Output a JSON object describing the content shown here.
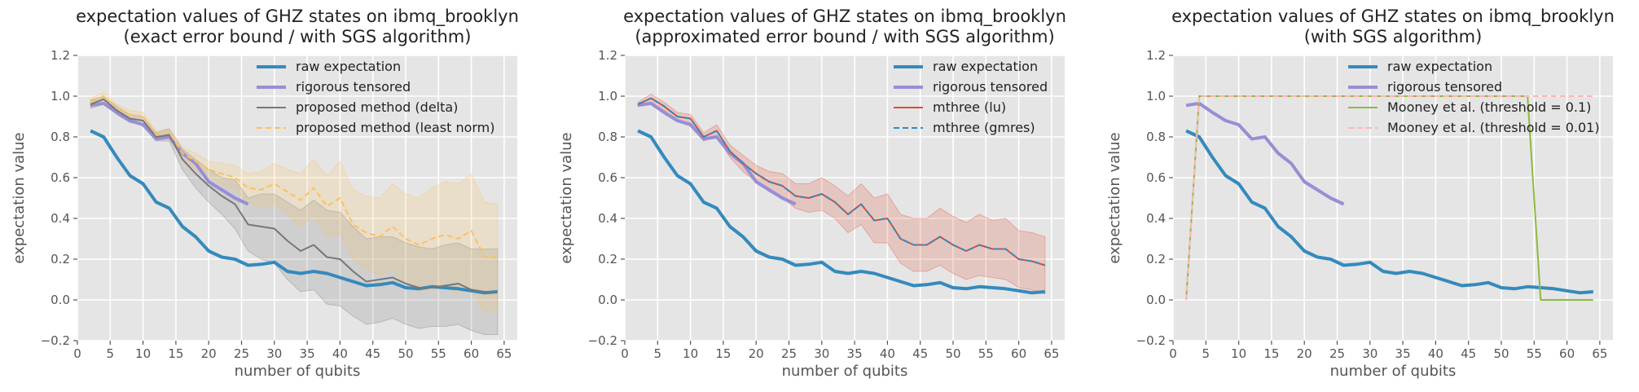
{
  "chart_data": [
    {
      "type": "line",
      "title": "expectation values of GHZ states on ibmq_brooklyn\n(exact error bound / with SGS algorithm)",
      "xlabel": "number of qubits",
      "ylabel": "expectation value",
      "xlim": [
        0,
        67
      ],
      "ylim": [
        -0.2,
        1.2
      ],
      "xticks": [
        0,
        5,
        10,
        15,
        20,
        25,
        30,
        35,
        40,
        45,
        50,
        55,
        60,
        65
      ],
      "yticks": [
        -0.2,
        0.0,
        0.2,
        0.4,
        0.6,
        0.8,
        1.0,
        1.2
      ],
      "ytick_labels": [
        "−0.2",
        "0.0",
        "0.2",
        "0.4",
        "0.6",
        "0.8",
        "1.0",
        "1.2"
      ],
      "legend_position": "top-right",
      "series": [
        {
          "name": "raw expectation",
          "color": "#348ABD",
          "style": "solid-thick",
          "x": [
            2,
            4,
            6,
            8,
            10,
            12,
            14,
            16,
            18,
            20,
            22,
            24,
            26,
            28,
            30,
            32,
            34,
            36,
            38,
            40,
            42,
            44,
            46,
            48,
            50,
            52,
            54,
            56,
            58,
            60,
            62,
            64
          ],
          "y": [
            0.83,
            0.8,
            0.7,
            0.61,
            0.57,
            0.48,
            0.45,
            0.36,
            0.31,
            0.24,
            0.21,
            0.2,
            0.17,
            0.175,
            0.185,
            0.14,
            0.13,
            0.14,
            0.13,
            0.11,
            0.09,
            0.07,
            0.075,
            0.085,
            0.06,
            0.055,
            0.065,
            0.06,
            0.055,
            0.045,
            0.035,
            0.04
          ]
        },
        {
          "name": "rigorous tensored",
          "color": "#988ED5",
          "style": "solid-thick",
          "x": [
            2,
            4,
            6,
            8,
            10,
            12,
            14,
            16,
            18,
            20,
            22,
            24,
            26
          ],
          "y": [
            0.955,
            0.965,
            0.92,
            0.88,
            0.86,
            0.79,
            0.8,
            0.72,
            0.67,
            0.58,
            0.54,
            0.5,
            0.47
          ]
        },
        {
          "name": "proposed method (delta)",
          "color": "#777777",
          "style": "solid",
          "x": [
            2,
            4,
            6,
            8,
            10,
            12,
            14,
            16,
            18,
            20,
            22,
            24,
            26,
            28,
            30,
            32,
            34,
            36,
            38,
            40,
            42,
            44,
            46,
            48,
            50,
            52,
            54,
            56,
            58,
            60,
            62,
            64
          ],
          "y": [
            0.96,
            0.985,
            0.93,
            0.89,
            0.88,
            0.8,
            0.81,
            0.69,
            0.62,
            0.56,
            0.51,
            0.47,
            0.37,
            0.36,
            0.35,
            0.29,
            0.24,
            0.27,
            0.21,
            0.2,
            0.14,
            0.09,
            0.1,
            0.11,
            0.08,
            0.06,
            0.06,
            0.07,
            0.08,
            0.05,
            0.04,
            0.04
          ],
          "band_lower": [
            0.94,
            0.96,
            0.91,
            0.87,
            0.86,
            0.78,
            0.78,
            0.64,
            0.55,
            0.48,
            0.42,
            0.35,
            0.24,
            0.2,
            0.18,
            0.1,
            0.04,
            0.05,
            -0.02,
            -0.03,
            -0.08,
            -0.12,
            -0.11,
            -0.09,
            -0.12,
            -0.14,
            -0.13,
            -0.13,
            -0.12,
            -0.15,
            -0.17,
            -0.17
          ],
          "band_upper": [
            0.98,
            1.0,
            0.95,
            0.91,
            0.9,
            0.82,
            0.84,
            0.74,
            0.69,
            0.64,
            0.6,
            0.59,
            0.5,
            0.52,
            0.52,
            0.48,
            0.44,
            0.49,
            0.44,
            0.43,
            0.36,
            0.3,
            0.31,
            0.31,
            0.28,
            0.26,
            0.25,
            0.27,
            0.28,
            0.25,
            0.25,
            0.25
          ]
        },
        {
          "name": "proposed method (least norm)",
          "color": "#FBC15E",
          "style": "dashed",
          "x": [
            2,
            4,
            6,
            8,
            10,
            12,
            14,
            16,
            18,
            20,
            22,
            24,
            26,
            28,
            30,
            32,
            34,
            36,
            38,
            40,
            42,
            44,
            46,
            48,
            50,
            52,
            54,
            56,
            58,
            60,
            62,
            64
          ],
          "y": [
            0.97,
            1.0,
            0.94,
            0.91,
            0.9,
            0.81,
            0.82,
            0.72,
            0.68,
            0.64,
            0.62,
            0.6,
            0.55,
            0.54,
            0.57,
            0.53,
            0.49,
            0.55,
            0.46,
            0.5,
            0.37,
            0.33,
            0.31,
            0.36,
            0.3,
            0.27,
            0.3,
            0.32,
            0.3,
            0.34,
            0.21,
            0.21
          ],
          "band_lower": [
            0.95,
            0.97,
            0.92,
            0.89,
            0.88,
            0.79,
            0.8,
            0.69,
            0.64,
            0.6,
            0.57,
            0.54,
            0.48,
            0.45,
            0.47,
            0.42,
            0.36,
            0.41,
            0.31,
            0.32,
            0.2,
            0.15,
            0.12,
            0.15,
            0.08,
            0.04,
            0.05,
            0.06,
            0.03,
            0.05,
            -0.06,
            -0.05
          ],
          "band_upper": [
            0.99,
            1.02,
            0.96,
            0.93,
            0.92,
            0.83,
            0.84,
            0.75,
            0.72,
            0.68,
            0.67,
            0.66,
            0.62,
            0.63,
            0.67,
            0.64,
            0.62,
            0.69,
            0.61,
            0.68,
            0.54,
            0.51,
            0.5,
            0.57,
            0.52,
            0.5,
            0.55,
            0.58,
            0.57,
            0.62,
            0.48,
            0.47
          ]
        }
      ]
    },
    {
      "type": "line",
      "title": "expectation values of GHZ states on ibmq_brooklyn\n(approximated error bound / with SGS algorithm)",
      "xlabel": "number of qubits",
      "ylabel": "expectation value",
      "xlim": [
        0,
        67
      ],
      "ylim": [
        -0.2,
        1.2
      ],
      "xticks": [
        0,
        5,
        10,
        15,
        20,
        25,
        30,
        35,
        40,
        45,
        50,
        55,
        60,
        65
      ],
      "yticks": [
        -0.2,
        0.0,
        0.2,
        0.4,
        0.6,
        0.8,
        1.0,
        1.2
      ],
      "ytick_labels": [
        "−0.2",
        "0.0",
        "0.2",
        "0.4",
        "0.6",
        "0.8",
        "1.0",
        "1.2"
      ],
      "legend_position": "top-right",
      "series": [
        {
          "name": "raw expectation",
          "color": "#348ABD",
          "style": "solid-thick",
          "x": [
            2,
            4,
            6,
            8,
            10,
            12,
            14,
            16,
            18,
            20,
            22,
            24,
            26,
            28,
            30,
            32,
            34,
            36,
            38,
            40,
            42,
            44,
            46,
            48,
            50,
            52,
            54,
            56,
            58,
            60,
            62,
            64
          ],
          "y": [
            0.83,
            0.8,
            0.7,
            0.61,
            0.57,
            0.48,
            0.45,
            0.36,
            0.31,
            0.24,
            0.21,
            0.2,
            0.17,
            0.175,
            0.185,
            0.14,
            0.13,
            0.14,
            0.13,
            0.11,
            0.09,
            0.07,
            0.075,
            0.085,
            0.06,
            0.055,
            0.065,
            0.06,
            0.055,
            0.045,
            0.035,
            0.04
          ]
        },
        {
          "name": "rigorous tensored",
          "color": "#988ED5",
          "style": "solid-thick",
          "x": [
            2,
            4,
            6,
            8,
            10,
            12,
            14,
            16,
            18,
            20,
            22,
            24,
            26
          ],
          "y": [
            0.955,
            0.965,
            0.92,
            0.88,
            0.86,
            0.79,
            0.8,
            0.72,
            0.67,
            0.58,
            0.54,
            0.5,
            0.47
          ]
        },
        {
          "name": "mthree (lu)",
          "color": "#E24A33",
          "style": "solid",
          "x": [
            2,
            4,
            6,
            8,
            10,
            12,
            14,
            16,
            18,
            20,
            22,
            24,
            26,
            28,
            30,
            32,
            34,
            36,
            38,
            40,
            42,
            44,
            46,
            48,
            50,
            52,
            54,
            56,
            58,
            60,
            62,
            64
          ],
          "y": [
            0.96,
            0.99,
            0.95,
            0.9,
            0.89,
            0.8,
            0.83,
            0.73,
            0.67,
            0.62,
            0.58,
            0.56,
            0.51,
            0.5,
            0.52,
            0.48,
            0.42,
            0.47,
            0.39,
            0.4,
            0.3,
            0.27,
            0.27,
            0.31,
            0.27,
            0.24,
            0.27,
            0.25,
            0.25,
            0.2,
            0.19,
            0.17
          ],
          "band_lower": [
            0.95,
            0.97,
            0.93,
            0.88,
            0.87,
            0.78,
            0.8,
            0.7,
            0.63,
            0.58,
            0.53,
            0.5,
            0.45,
            0.43,
            0.44,
            0.4,
            0.33,
            0.37,
            0.28,
            0.28,
            0.18,
            0.14,
            0.14,
            0.17,
            0.13,
            0.1,
            0.12,
            0.11,
            0.1,
            0.06,
            0.05,
            0.03
          ],
          "band_upper": [
            0.97,
            1.01,
            0.97,
            0.92,
            0.91,
            0.82,
            0.86,
            0.76,
            0.71,
            0.66,
            0.63,
            0.62,
            0.57,
            0.57,
            0.6,
            0.56,
            0.51,
            0.57,
            0.5,
            0.52,
            0.42,
            0.4,
            0.4,
            0.45,
            0.41,
            0.38,
            0.42,
            0.39,
            0.4,
            0.34,
            0.33,
            0.31
          ]
        },
        {
          "name": "mthree (gmres)",
          "color": "#348ABD",
          "style": "dashed",
          "x": [
            2,
            4,
            6,
            8,
            10,
            12,
            14,
            16,
            18,
            20,
            22,
            24,
            26,
            28,
            30,
            32,
            34,
            36,
            38,
            40,
            42,
            44,
            46,
            48,
            50,
            52,
            54,
            56,
            58,
            60,
            62,
            64
          ],
          "y": [
            0.96,
            0.99,
            0.95,
            0.9,
            0.89,
            0.8,
            0.83,
            0.73,
            0.67,
            0.62,
            0.58,
            0.56,
            0.51,
            0.5,
            0.52,
            0.48,
            0.42,
            0.47,
            0.39,
            0.4,
            0.3,
            0.27,
            0.27,
            0.31,
            0.27,
            0.24,
            0.27,
            0.25,
            0.25,
            0.2,
            0.19,
            0.17
          ]
        }
      ]
    },
    {
      "type": "line",
      "title": "expectation values of GHZ states on ibmq_brooklyn\n(with SGS algorithm)",
      "xlabel": "number of qubits",
      "ylabel": "expectation value",
      "xlim": [
        0,
        67
      ],
      "ylim": [
        -0.2,
        1.2
      ],
      "xticks": [
        0,
        5,
        10,
        15,
        20,
        25,
        30,
        35,
        40,
        45,
        50,
        55,
        60,
        65
      ],
      "yticks": [
        -0.2,
        0.0,
        0.2,
        0.4,
        0.6,
        0.8,
        1.0,
        1.2
      ],
      "ytick_labels": [
        "−0.2",
        "0.0",
        "0.2",
        "0.4",
        "0.6",
        "0.8",
        "1.0",
        "1.2"
      ],
      "legend_position": "top-right",
      "series": [
        {
          "name": "raw expectation",
          "color": "#348ABD",
          "style": "solid-thick",
          "x": [
            2,
            4,
            6,
            8,
            10,
            12,
            14,
            16,
            18,
            20,
            22,
            24,
            26,
            28,
            30,
            32,
            34,
            36,
            38,
            40,
            42,
            44,
            46,
            48,
            50,
            52,
            54,
            56,
            58,
            60,
            62,
            64
          ],
          "y": [
            0.83,
            0.8,
            0.7,
            0.61,
            0.57,
            0.48,
            0.45,
            0.36,
            0.31,
            0.24,
            0.21,
            0.2,
            0.17,
            0.175,
            0.185,
            0.14,
            0.13,
            0.14,
            0.13,
            0.11,
            0.09,
            0.07,
            0.075,
            0.085,
            0.06,
            0.055,
            0.065,
            0.06,
            0.055,
            0.045,
            0.035,
            0.04
          ]
        },
        {
          "name": "rigorous tensored",
          "color": "#988ED5",
          "style": "solid-thick",
          "x": [
            2,
            4,
            6,
            8,
            10,
            12,
            14,
            16,
            18,
            20,
            22,
            24,
            26
          ],
          "y": [
            0.955,
            0.965,
            0.92,
            0.88,
            0.86,
            0.79,
            0.8,
            0.72,
            0.67,
            0.58,
            0.54,
            0.5,
            0.47
          ]
        },
        {
          "name": "Mooney et al. (threshold = 0.1)",
          "color": "#8EBA42",
          "style": "solid",
          "x": [
            2,
            4,
            6,
            8,
            10,
            12,
            14,
            16,
            18,
            20,
            22,
            24,
            26,
            28,
            30,
            32,
            34,
            36,
            38,
            40,
            42,
            44,
            46,
            48,
            50,
            52,
            54,
            56,
            58,
            60,
            62,
            64
          ],
          "y": [
            0,
            1,
            1,
            1,
            1,
            1,
            1,
            1,
            1,
            1,
            1,
            1,
            1,
            1,
            1,
            1,
            1,
            1,
            1,
            1,
            1,
            1,
            1,
            1,
            1,
            1,
            1,
            0,
            0,
            0,
            0,
            0
          ]
        },
        {
          "name": "Mooney et al. (threshold = 0.01)",
          "color": "#FFB5B8",
          "style": "dashed",
          "x": [
            2,
            4,
            6,
            8,
            10,
            12,
            14,
            16,
            18,
            20,
            22,
            24,
            26,
            28,
            30,
            32,
            34,
            36,
            38,
            40,
            42,
            44,
            46,
            48,
            50,
            52,
            54,
            56,
            58,
            60,
            62,
            64
          ],
          "y": [
            0,
            1,
            1,
            1,
            1,
            1,
            1,
            1,
            1,
            1,
            1,
            1,
            1,
            1,
            1,
            1,
            1,
            1,
            1,
            1,
            1,
            1,
            1,
            1,
            1,
            1,
            1,
            1,
            1,
            1,
            1,
            1
          ]
        }
      ]
    }
  ]
}
